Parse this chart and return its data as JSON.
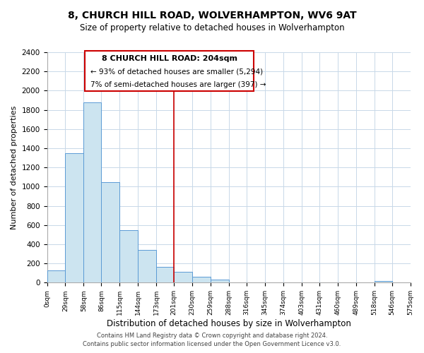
{
  "title": "8, CHURCH HILL ROAD, WOLVERHAMPTON, WV6 9AT",
  "subtitle": "Size of property relative to detached houses in Wolverhampton",
  "xlabel": "Distribution of detached houses by size in Wolverhampton",
  "ylabel": "Number of detached properties",
  "bin_edges": [
    0,
    29,
    58,
    86,
    115,
    144,
    173,
    201,
    230,
    259,
    288,
    316,
    345,
    374,
    403,
    431,
    460,
    489,
    518,
    546,
    575
  ],
  "bar_heights": [
    125,
    1350,
    1880,
    1050,
    550,
    340,
    165,
    110,
    60,
    30,
    0,
    0,
    0,
    0,
    0,
    0,
    0,
    0,
    20,
    0
  ],
  "bar_color": "#cce4f0",
  "bar_edge_color": "#5b9bd5",
  "vline_x": 201,
  "vline_color": "#cc0000",
  "ylim": [
    0,
    2400
  ],
  "yticks": [
    0,
    200,
    400,
    600,
    800,
    1000,
    1200,
    1400,
    1600,
    1800,
    2000,
    2200,
    2400
  ],
  "tick_labels": [
    "0sqm",
    "29sqm",
    "58sqm",
    "86sqm",
    "115sqm",
    "144sqm",
    "173sqm",
    "201sqm",
    "230sqm",
    "259sqm",
    "288sqm",
    "316sqm",
    "345sqm",
    "374sqm",
    "403sqm",
    "431sqm",
    "460sqm",
    "489sqm",
    "518sqm",
    "546sqm",
    "575sqm"
  ],
  "annotation_box_title": "8 CHURCH HILL ROAD: 204sqm",
  "annotation_line1": "← 93% of detached houses are smaller (5,294)",
  "annotation_line2": "7% of semi-detached houses are larger (397) →",
  "footer_line1": "Contains HM Land Registry data © Crown copyright and database right 2024.",
  "footer_line2": "Contains public sector information licensed under the Open Government Licence v3.0.",
  "background_color": "#ffffff",
  "grid_color": "#c8d8e8"
}
